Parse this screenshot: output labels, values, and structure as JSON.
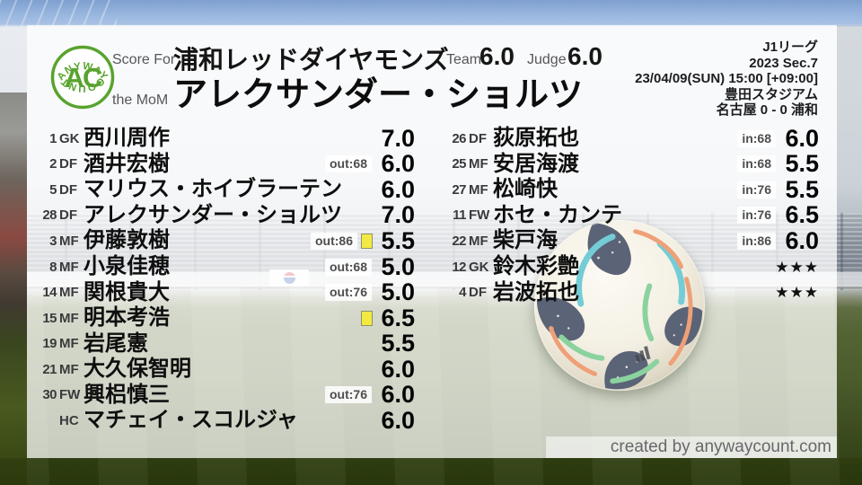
{
  "brand": {
    "logo_arc_top": "ANYWAY",
    "logo_center": "AC",
    "logo_arc_bottom": "COUNT"
  },
  "colors": {
    "accent_green": "#58a32e",
    "card_yellow": "#f2ea43",
    "overlay_white": "#ffffff"
  },
  "header": {
    "score_for_label": "Score For",
    "team_name": "浦和レッドダイヤモンズ",
    "team_label": "Team",
    "team_score": "6.0",
    "judge_label": "Judge",
    "judge_score": "6.0",
    "mom_label": "the MoM",
    "mom_name": "アレクサンダー・ショルツ"
  },
  "match_info": {
    "league": "J1リーグ",
    "season": "2023 Sec.7",
    "kickoff": "23/04/09(SUN) 15:00 [+09:00]",
    "venue": "豊田スタジアム",
    "result": "名古屋 0 - 0 浦和"
  },
  "ratings": {
    "starters": [
      {
        "number": "1",
        "pos": "GK",
        "name": "西川周作",
        "sub": "",
        "card": false,
        "score": "7.0"
      },
      {
        "number": "2",
        "pos": "DF",
        "name": "酒井宏樹",
        "sub": "out:68",
        "card": false,
        "score": "6.0"
      },
      {
        "number": "5",
        "pos": "DF",
        "name": "マリウス・ホイブラーテン",
        "sub": "",
        "card": false,
        "score": "6.0"
      },
      {
        "number": "28",
        "pos": "DF",
        "name": "アレクサンダー・ショルツ",
        "sub": "",
        "card": false,
        "score": "7.0"
      },
      {
        "number": "3",
        "pos": "MF",
        "name": "伊藤敦樹",
        "sub": "out:86",
        "card": true,
        "score": "5.5"
      },
      {
        "number": "8",
        "pos": "MF",
        "name": "小泉佳穂",
        "sub": "out:68",
        "card": false,
        "score": "5.0"
      },
      {
        "number": "14",
        "pos": "MF",
        "name": "関根貴大",
        "sub": "out:76",
        "card": false,
        "score": "5.0"
      },
      {
        "number": "15",
        "pos": "MF",
        "name": "明本考浩",
        "sub": "",
        "card": true,
        "score": "6.5"
      },
      {
        "number": "19",
        "pos": "MF",
        "name": "岩尾憲",
        "sub": "",
        "card": false,
        "score": "5.5"
      },
      {
        "number": "21",
        "pos": "MF",
        "name": "大久保智明",
        "sub": "",
        "card": false,
        "score": "6.0"
      },
      {
        "number": "30",
        "pos": "FW",
        "name": "興梠慎三",
        "sub": "out:76",
        "card": false,
        "score": "6.0"
      },
      {
        "number": "",
        "pos": "HC",
        "name": "マチェイ・スコルジャ",
        "sub": "",
        "card": false,
        "score": "6.0"
      }
    ],
    "bench": [
      {
        "number": "26",
        "pos": "DF",
        "name": "荻原拓也",
        "sub": "in:68",
        "card": false,
        "score": "6.0"
      },
      {
        "number": "25",
        "pos": "MF",
        "name": "安居海渡",
        "sub": "in:68",
        "card": false,
        "score": "5.5"
      },
      {
        "number": "27",
        "pos": "MF",
        "name": "松崎快",
        "sub": "in:76",
        "card": false,
        "score": "5.5"
      },
      {
        "number": "11",
        "pos": "FW",
        "name": "ホセ・カンテ",
        "sub": "in:76",
        "card": false,
        "score": "6.5"
      },
      {
        "number": "22",
        "pos": "MF",
        "name": "柴戸海",
        "sub": "in:86",
        "card": false,
        "score": "6.0"
      },
      {
        "number": "12",
        "pos": "GK",
        "name": "鈴木彩艶",
        "sub": "",
        "card": false,
        "score": "★★★"
      },
      {
        "number": "4",
        "pos": "DF",
        "name": "岩波拓也",
        "sub": "",
        "card": false,
        "score": "★★★"
      }
    ]
  },
  "footer": {
    "credit": "created by anywaycount.com"
  }
}
